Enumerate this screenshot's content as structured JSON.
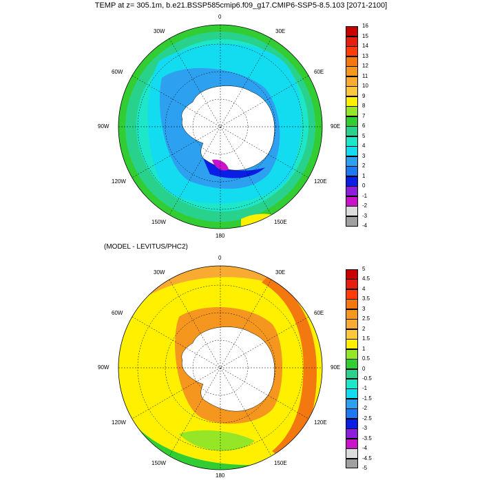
{
  "header": {
    "title": "TEMP at z= 305.1m, b.e21.BSSP585cmip6.f09_g17.CMIP6-SSP5-8.5.103 [2071-2100]"
  },
  "panel_top": {
    "lon_labels": [
      "0",
      "30E",
      "60E",
      "90E",
      "120E",
      "150E",
      "180",
      "150W",
      "120W",
      "90W",
      "60W",
      "30W"
    ],
    "colorbar": {
      "labels": [
        "16",
        "15",
        "14",
        "13",
        "12",
        "11",
        "10",
        "9",
        "8",
        "7",
        "6",
        "5",
        "4",
        "3",
        "2",
        "1",
        "0",
        "-1",
        "-2",
        "-3",
        "-4"
      ],
      "colors": [
        "#c80000",
        "#e61e0f",
        "#ff3c0a",
        "#f2780f",
        "#f5961e",
        "#f8aa32",
        "#fbc83c",
        "#fff000",
        "#96e628",
        "#32cd32",
        "#28d28c",
        "#1ee6c8",
        "#14dcf0",
        "#2da0f0",
        "#1e78f0",
        "#0a1ee6",
        "#8c1edc",
        "#c814c8",
        "#dcdcdc",
        "#a0a0a0",
        "#6e6e6e"
      ]
    }
  },
  "panel_bottom": {
    "subtitle": "(MODEL - LEVITUS/PHC2)",
    "lon_labels": [
      "0",
      "30E",
      "60E",
      "90E",
      "120E",
      "150E",
      "180",
      "150W",
      "120W",
      "90W",
      "60W",
      "30W"
    ],
    "colorbar": {
      "labels": [
        "5",
        "4.5",
        "4",
        "3.5",
        "3",
        "2.5",
        "2",
        "1.5",
        "1",
        "0.5",
        "0",
        "-0.5",
        "-1",
        "-1.5",
        "-2",
        "-2.5",
        "-3",
        "-3.5",
        "-4",
        "-4.5",
        "-5"
      ],
      "colors": [
        "#c80000",
        "#e61e0f",
        "#ff3c0a",
        "#f2780f",
        "#f5961e",
        "#f8aa32",
        "#fbc83c",
        "#fff000",
        "#96e628",
        "#32cd32",
        "#28d28c",
        "#1ee6c8",
        "#14dcf0",
        "#2da0f0",
        "#1e78f0",
        "#0a1ee6",
        "#8c1edc",
        "#c814c8",
        "#dcdcdc",
        "#a0a0a0",
        "#6e6e6e"
      ]
    }
  }
}
